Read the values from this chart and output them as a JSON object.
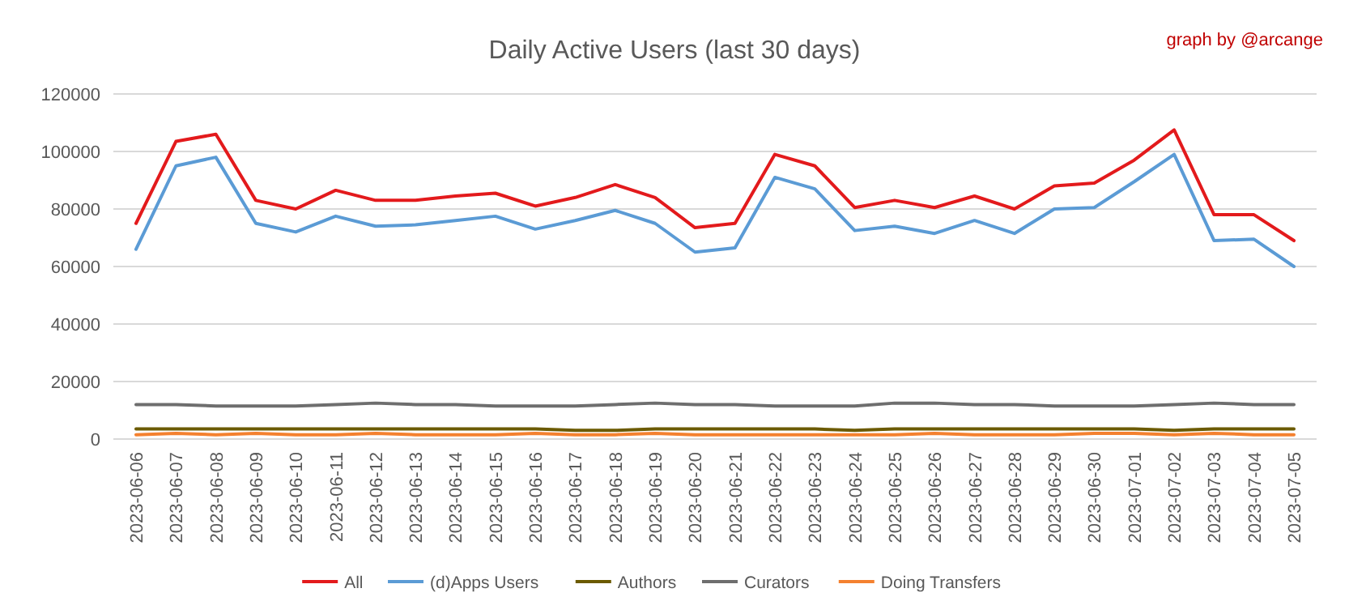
{
  "chart_data": {
    "type": "line",
    "title": "Daily Active Users (last 30 days)",
    "annotations": [
      "graph by @arcange"
    ],
    "categories": [
      "2023-06-06",
      "2023-06-07",
      "2023-06-08",
      "2023-06-09",
      "2023-06-10",
      "2023-06-11",
      "2023-06-12",
      "2023-06-13",
      "2023-06-14",
      "2023-06-15",
      "2023-06-16",
      "2023-06-17",
      "2023-06-18",
      "2023-06-19",
      "2023-06-20",
      "2023-06-21",
      "2023-06-22",
      "2023-06-23",
      "2023-06-24",
      "2023-06-25",
      "2023-06-26",
      "2023-06-27",
      "2023-06-28",
      "2023-06-29",
      "2023-06-30",
      "2023-07-01",
      "2023-07-02",
      "2023-07-03",
      "2023-07-04",
      "2023-07-05"
    ],
    "series": [
      {
        "name": "All",
        "color": "#e31a1c",
        "values": [
          75000,
          103500,
          106000,
          83000,
          80000,
          86500,
          83000,
          83000,
          84500,
          85500,
          81000,
          84000,
          88500,
          84000,
          73500,
          75000,
          99000,
          95000,
          80500,
          83000,
          80500,
          84500,
          80000,
          88000,
          89000,
          97000,
          107500,
          78000,
          78000,
          69000
        ]
      },
      {
        "name": "(d)Apps Users",
        "color": "#5b9bd5",
        "values": [
          66000,
          95000,
          98000,
          75000,
          72000,
          77500,
          74000,
          74500,
          76000,
          77500,
          73000,
          76000,
          79500,
          75000,
          65000,
          66500,
          91000,
          87000,
          72500,
          74000,
          71500,
          76000,
          71500,
          80000,
          80500,
          89500,
          99000,
          69000,
          69500,
          60000
        ]
      },
      {
        "name": "Authors",
        "color": "#6b5a00",
        "values": [
          3500,
          3500,
          3500,
          3500,
          3500,
          3500,
          3500,
          3500,
          3500,
          3500,
          3500,
          3000,
          3000,
          3500,
          3500,
          3500,
          3500,
          3500,
          3000,
          3500,
          3500,
          3500,
          3500,
          3500,
          3500,
          3500,
          3000,
          3500,
          3500,
          3500
        ]
      },
      {
        "name": "Curators",
        "color": "#6e6e6e",
        "values": [
          12000,
          12000,
          11500,
          11500,
          11500,
          12000,
          12500,
          12000,
          12000,
          11500,
          11500,
          11500,
          12000,
          12500,
          12000,
          12000,
          11500,
          11500,
          11500,
          12500,
          12500,
          12000,
          12000,
          11500,
          11500,
          11500,
          12000,
          12500,
          12000,
          12000
        ]
      },
      {
        "name": "Doing Transfers",
        "color": "#f4812f",
        "values": [
          1500,
          2000,
          1500,
          2000,
          1500,
          1500,
          2000,
          1500,
          1500,
          1500,
          2000,
          1500,
          1500,
          2000,
          1500,
          1500,
          1500,
          1500,
          1500,
          1500,
          2000,
          1500,
          1500,
          1500,
          2000,
          2000,
          1500,
          2000,
          1500,
          1500
        ]
      }
    ],
    "ylim": [
      0,
      120000
    ],
    "yticks": [
      0,
      20000,
      40000,
      60000,
      80000,
      100000,
      120000
    ],
    "grid": "y",
    "legend": "bottom",
    "marker": "none",
    "line_style": "solid"
  }
}
